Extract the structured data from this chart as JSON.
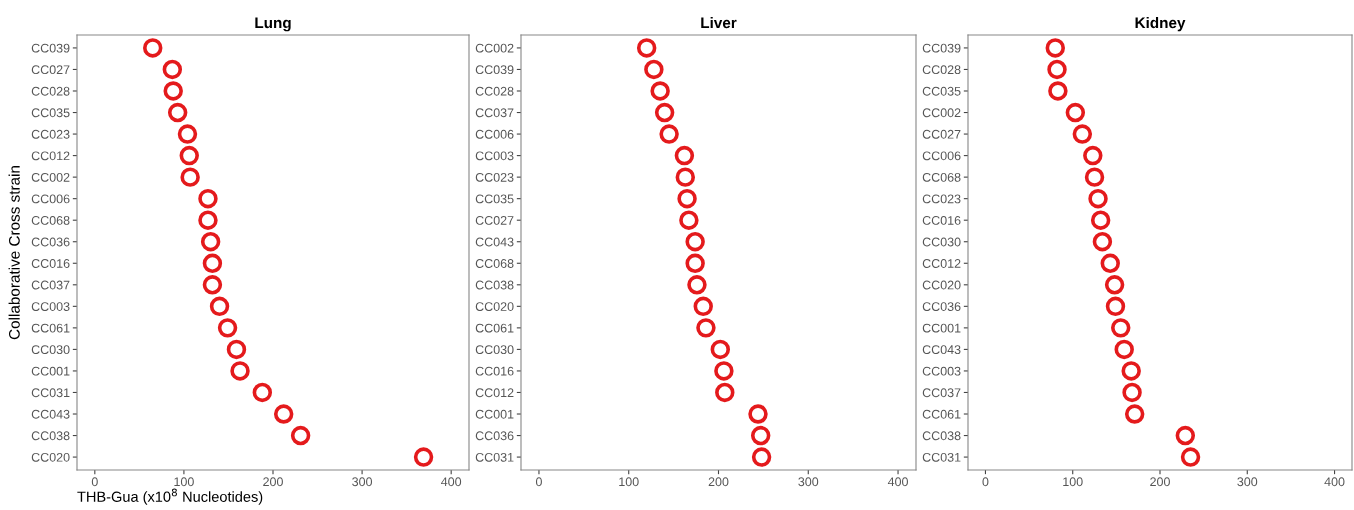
{
  "chart_data": [
    {
      "type": "scatter",
      "orientation": "horizontal",
      "title": "Lung",
      "ylabel": "Collaborative Cross strain",
      "xlabel": "THB-Gua (x10$^{8}$ Nucleotides)",
      "marker": "circle",
      "grid": false,
      "xlim": [
        -20,
        420
      ],
      "xticks": [
        0,
        100,
        200,
        300,
        400
      ],
      "categories": [
        "CC039",
        "CC027",
        "CC028",
        "CC035",
        "CC023",
        "CC012",
        "CC002",
        "CC006",
        "CC068",
        "CC036",
        "CC016",
        "CC037",
        "CC003",
        "CC061",
        "CC030",
        "CC001",
        "CC031",
        "CC043",
        "CC038",
        "CC020"
      ],
      "series": [
        {
          "color": "#e41a1c",
          "values": [
            65,
            87,
            88,
            93,
            104,
            106,
            107,
            127,
            127,
            130,
            132,
            132,
            140,
            149,
            159,
            163,
            188,
            212,
            231,
            369
          ]
        }
      ]
    },
    {
      "type": "scatter",
      "orientation": "horizontal",
      "title": "Liver",
      "marker": "circle",
      "grid": false,
      "xlim": [
        -20,
        420
      ],
      "xticks": [
        0,
        100,
        200,
        300,
        400
      ],
      "categories": [
        "CC002",
        "CC039",
        "CC028",
        "CC037",
        "CC006",
        "CC003",
        "CC023",
        "CC035",
        "CC027",
        "CC043",
        "CC068",
        "CC038",
        "CC020",
        "CC061",
        "CC030",
        "CC016",
        "CC012",
        "CC001",
        "CC036",
        "CC031"
      ],
      "series": [
        {
          "color": "#e41a1c",
          "values": [
            120,
            128,
            135,
            140,
            145,
            162,
            163,
            165,
            167,
            174,
            174,
            176,
            183,
            186,
            202,
            206,
            207,
            244,
            247,
            248
          ]
        }
      ]
    },
    {
      "type": "scatter",
      "orientation": "horizontal",
      "title": "Kidney",
      "marker": "circle",
      "grid": false,
      "xlim": [
        -20,
        420
      ],
      "xticks": [
        0,
        100,
        200,
        300,
        400
      ],
      "categories": [
        "CC039",
        "CC028",
        "CC035",
        "CC002",
        "CC027",
        "CC006",
        "CC068",
        "CC023",
        "CC016",
        "CC030",
        "CC012",
        "CC020",
        "CC036",
        "CC001",
        "CC043",
        "CC003",
        "CC037",
        "CC061",
        "CC038",
        "CC031"
      ],
      "series": [
        {
          "color": "#e41a1c",
          "values": [
            80,
            82,
            83,
            103,
            111,
            123,
            125,
            129,
            132,
            134,
            143,
            148,
            149,
            155,
            159,
            167,
            168,
            171,
            229,
            235
          ]
        }
      ]
    }
  ]
}
